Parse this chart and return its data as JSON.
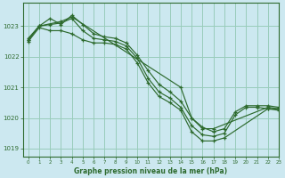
{
  "title": "Graphe pression niveau de la mer (hPa)",
  "background_color": "#cce8f0",
  "plot_bg_color": "#cce8f0",
  "line_color": "#2d6a2d",
  "grid_color": "#99ccbb",
  "text_color": "#2d6a2d",
  "ylim": [
    1018.75,
    1023.75
  ],
  "xlim": [
    -0.5,
    23
  ],
  "yticks": [
    1019,
    1020,
    1021,
    1022,
    1023
  ],
  "xticks": [
    0,
    1,
    2,
    3,
    4,
    5,
    6,
    7,
    8,
    9,
    10,
    11,
    12,
    13,
    14,
    15,
    16,
    17,
    18,
    19,
    20,
    21,
    22,
    23
  ],
  "series1_x": [
    0,
    1,
    2,
    3,
    4,
    5,
    6,
    7,
    8,
    9,
    10,
    11,
    12,
    13,
    14,
    15,
    16,
    17,
    18,
    19,
    20,
    21,
    22,
    23
  ],
  "series1_y": [
    1022.6,
    1023.0,
    1023.25,
    1023.05,
    1023.35,
    1023.05,
    1022.75,
    1022.65,
    1022.6,
    1022.45,
    1022.05,
    1021.55,
    1021.1,
    1020.85,
    1020.55,
    1020.0,
    1019.7,
    1019.55,
    1019.65,
    1020.2,
    1020.4,
    1020.4,
    1020.4,
    1020.35
  ],
  "series2_x": [
    0,
    1,
    2,
    3,
    4,
    5,
    6,
    7,
    8,
    9,
    10,
    11,
    12,
    13,
    14,
    15,
    16,
    17,
    18,
    19,
    20,
    21,
    22,
    23
  ],
  "series2_y": [
    1022.55,
    1023.0,
    1023.05,
    1023.1,
    1023.25,
    1022.85,
    1022.6,
    1022.55,
    1022.5,
    1022.35,
    1021.95,
    1021.3,
    1020.85,
    1020.65,
    1020.35,
    1019.75,
    1019.45,
    1019.4,
    1019.5,
    1020.1,
    1020.35,
    1020.35,
    1020.3,
    1020.3
  ],
  "series3_x": [
    0,
    1,
    2,
    3,
    4,
    5,
    6,
    7,
    8,
    9,
    10,
    11,
    12,
    13,
    14,
    15,
    16,
    17,
    18,
    22,
    23
  ],
  "series3_y": [
    1022.5,
    1022.95,
    1022.85,
    1022.85,
    1022.75,
    1022.55,
    1022.45,
    1022.45,
    1022.4,
    1022.25,
    1021.8,
    1021.15,
    1020.7,
    1020.5,
    1020.25,
    1019.55,
    1019.25,
    1019.25,
    1019.35,
    1020.3,
    1020.25
  ],
  "series4_x": [
    0,
    1,
    3,
    4,
    14,
    15,
    16,
    17,
    22,
    23
  ],
  "series4_y": [
    1022.55,
    1023.0,
    1023.15,
    1023.3,
    1021.0,
    1020.0,
    1019.65,
    1019.65,
    1020.35,
    1020.3
  ]
}
